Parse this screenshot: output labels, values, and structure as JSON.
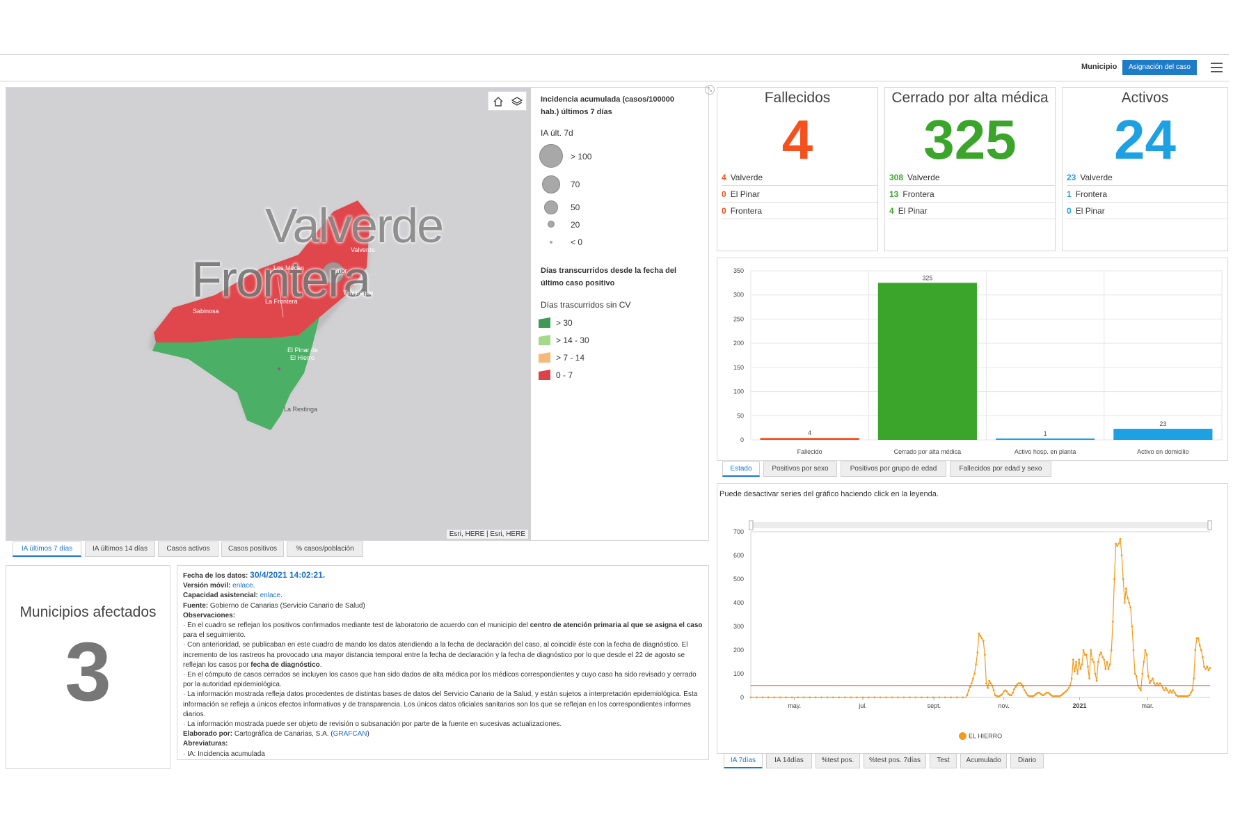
{
  "header": {
    "filter_label": "Municipio",
    "filter_button": "Asignación del caso",
    "menu_icon": "hamburger-menu-icon"
  },
  "map": {
    "labels": {
      "valverde_big": "Valverde",
      "frontera_big": "Frontera",
      "valverde_small": "Valverde",
      "mocan": "Los Mocan",
      "isora": "ínor",
      "tiñor": "Tiñor",
      "timijiraque": "Timijiraque",
      "frontera_small": "La Frontera",
      "sabinosa": "Sabinosa",
      "el_pinar": "El Pinar de",
      "el_hierro": "El Hierro",
      "restinga": "La Restinga"
    },
    "attribution": "Esri, HERE | Esri, HERE",
    "colors": {
      "red": "#e0474c",
      "green": "#4caf66",
      "water": "#d1d1d3"
    }
  },
  "legend": {
    "title": "Incidencia acumulada (casos/100000 hab.) últimos 7 días",
    "size_title": "IA últ. 7d",
    "sizes": [
      "> 100",
      "70",
      "50",
      "20",
      "< 0"
    ],
    "days_title": "Días transcurridos desde la fecha del último caso positivo",
    "days_subtitle": "Días trascurridos sin CV",
    "classes": [
      {
        "label": "> 30",
        "color": "#3d9a53"
      },
      {
        "label": "> 14 - 30",
        "color": "#a5d98a"
      },
      {
        "label": "> 7 - 14",
        "color": "#f5b97b"
      },
      {
        "label": "0 - 7",
        "color": "#d9434a"
      }
    ]
  },
  "map_tabs": [
    "IA últimos 7 días",
    "IA últimos 14 días",
    "Casos activos",
    "Casos positivos",
    "% casos/población"
  ],
  "municipios": {
    "title": "Municipios afectados",
    "value": "3"
  },
  "notes": {
    "fecha_label": "Fecha de los datos:",
    "fecha_value": "30/4/2021 14:02:21.",
    "movil_label": "Versión móvil:",
    "movil_link": "enlace",
    "capacidad_label": "Capacidad asistencial:",
    "capacidad_link": "enlace",
    "fuente_label": "Fuente:",
    "fuente_value": "Gobierno de Canarias (Servicio Canario de Salud)",
    "obs_label": "Observaciones:",
    "obs1a": "· En el cuadro se reflejan los positivos confirmados mediante test de laboratorio de acuerdo con el municipio del",
    "obs1b": "centro de atención primaria al que se asigna el caso",
    "obs1c": "para el seguimiento.",
    "obs2a": "· Con anterioridad, se publicaban en este cuadro de mando los datos atendiendo a la fecha de declaración del caso, al coincidir éste con la fecha de diagnóstico. El incremento de los rastreos ha provocado una mayor distancia temporal entre la fecha de declaración y la fecha de diagnóstico por lo que desde el 22 de agosto se reflejan los casos por",
    "obs2b": "fecha de diagnóstico",
    "obs3": "· En el cómputo de casos cerrados se incluyen los casos que han sido dados de alta médica por los médicos correspondientes y cuyo caso ha sido revisado y cerrado por la autoridad epidemiológica.",
    "obs4": "· La información mostrada refleja datos procedentes de distintas bases de datos del Servicio Canario de la Salud, y están sujetos a interpretación epidemiológica. Esta información se refleja a únicos efectos informativos y de transparencia. Los únicos datos oficiales sanitarios son los que se reflejan en los correspondientes informes diarios.",
    "obs5": "· La información mostrada puede ser objeto de revisión o subsanación por parte de la fuente en sucesivas actualizaciones.",
    "elaborado_label": "Elaborado por:",
    "elaborado_value": "Cartográfica de Canarias, S.A. (",
    "elaborado_link": "GRAFCAN",
    "elaborado_end": ")",
    "abrev_label": "Abreviaturas:",
    "abrev_value": "· IA: Incidencia acumulada"
  },
  "kpis": [
    {
      "title": "Fallecidos",
      "value": "4",
      "color": "#f4511e",
      "rows": [
        {
          "num": "4",
          "name": "Valverde"
        },
        {
          "num": "0",
          "name": "El Pinar"
        },
        {
          "num": "0",
          "name": "Frontera"
        }
      ]
    },
    {
      "title": "Cerrado por alta médica",
      "value": "325",
      "color": "#3aa52a",
      "rows": [
        {
          "num": "308",
          "name": "Valverde"
        },
        {
          "num": "13",
          "name": "Frontera"
        },
        {
          "num": "4",
          "name": "El Pinar"
        }
      ]
    },
    {
      "title": "Activos",
      "value": "24",
      "color": "#1ea1e3",
      "rows": [
        {
          "num": "23",
          "name": "Valverde"
        },
        {
          "num": "1",
          "name": "Frontera"
        },
        {
          "num": "0",
          "name": "El Pinar"
        }
      ]
    }
  ],
  "bar_tabs": [
    "Estado",
    "Positivos por sexo",
    "Positivos por grupo de edad",
    "Fallecidos por edad y sexo"
  ],
  "line_note": "Puede desactivar series del gráfico haciendo click en la leyenda.",
  "line_tabs": [
    "IA 7días",
    "IA 14días",
    "%test pos.",
    "%test pos. 7días",
    "Test",
    "Acumulado",
    "Diario"
  ],
  "chart_data": [
    {
      "type": "bar",
      "categories": [
        "Fallecido",
        "Cerrado por alta médica",
        "Activo hosp. en planta",
        "Activo en domicilio"
      ],
      "values": [
        4,
        325,
        1,
        23
      ],
      "colors": [
        "#f4511e",
        "#3aa52a",
        "#1ea1e3",
        "#1ea1e3"
      ],
      "ylim": [
        0,
        350
      ],
      "yticks": [
        0,
        50,
        100,
        150,
        200,
        250,
        300,
        350
      ],
      "grid": true
    },
    {
      "type": "line",
      "series": [
        {
          "name": "EL HIERRO",
          "color": "#f29b1d",
          "values": [
            0,
            0,
            0,
            0,
            0,
            0,
            0,
            0,
            0,
            0,
            0,
            0,
            0,
            0,
            0,
            0,
            0,
            0,
            0,
            0,
            0,
            0,
            0,
            0,
            0,
            0,
            0,
            0,
            0,
            0,
            0,
            0,
            0,
            0,
            0,
            0,
            0,
            0,
            0,
            0,
            0,
            0,
            0,
            0,
            0,
            0,
            0,
            0,
            0,
            0,
            0,
            0,
            0,
            0,
            0,
            0,
            0,
            0,
            0,
            0,
            0,
            0,
            0,
            0,
            0,
            0,
            0,
            0,
            0,
            0,
            0,
            0,
            0,
            0,
            0,
            0,
            0,
            0,
            0,
            0,
            0,
            0,
            0,
            0,
            0,
            0,
            0,
            0,
            0,
            0,
            0,
            0,
            0,
            0,
            0,
            0,
            0,
            0,
            0,
            0,
            0,
            0,
            0,
            0,
            0,
            0,
            0,
            0,
            0,
            0,
            0,
            0,
            0,
            0,
            0,
            0,
            0,
            0,
            0,
            0,
            0,
            0,
            0,
            0,
            0,
            0,
            0,
            0,
            0,
            0,
            0,
            0,
            0,
            0,
            0,
            0,
            0,
            0,
            0,
            0,
            0,
            0,
            0,
            0,
            0,
            0,
            0,
            10,
            30,
            45,
            60,
            80,
            100,
            140,
            190,
            270,
            260,
            250,
            240,
            180,
            60,
            40,
            70,
            60,
            50,
            30,
            10,
            5,
            5,
            5,
            10,
            15,
            25,
            30,
            25,
            15,
            10,
            10,
            20,
            35,
            45,
            55,
            60,
            60,
            55,
            45,
            30,
            20,
            10,
            5,
            5,
            5,
            5,
            10,
            15,
            20,
            20,
            15,
            10,
            10,
            15,
            20,
            20,
            15,
            10,
            5,
            5,
            5,
            5,
            5,
            5,
            10,
            15,
            20,
            25,
            30,
            40,
            50,
            80,
            160,
            110,
            150,
            100,
            160,
            120,
            140,
            200,
            180,
            180,
            130,
            80,
            200,
            160,
            150,
            100,
            70,
            150,
            180,
            190,
            170,
            160,
            120,
            150,
            120,
            140,
            200,
            320,
            500,
            650,
            640,
            650,
            670,
            600,
            500,
            400,
            460,
            420,
            400,
            380,
            300,
            200,
            100,
            90,
            50,
            40,
            30,
            100,
            150,
            200,
            180,
            90,
            60,
            70,
            80,
            60,
            50,
            60,
            50,
            60,
            50,
            40,
            30,
            40,
            30,
            20,
            30,
            20,
            30,
            20,
            10,
            5,
            5,
            5,
            5,
            5,
            5,
            5,
            5,
            10,
            20,
            30,
            80,
            200,
            250,
            250,
            220,
            200,
            170,
            130,
            120,
            130,
            115,
            125
          ]
        }
      ],
      "threshold": {
        "value": 50,
        "color": "#e85a60"
      },
      "ylim": [
        0,
        700
      ],
      "yticks": [
        0,
        100,
        200,
        300,
        400,
        500,
        600,
        700
      ],
      "xticks": [
        {
          "label": "may.",
          "frac": 0.095
        },
        {
          "label": "jul.",
          "frac": 0.244
        },
        {
          "label": "sept.",
          "frac": 0.399
        },
        {
          "label": "nov.",
          "frac": 0.551
        },
        {
          "label": "2021",
          "frac": 0.716
        },
        {
          "label": "mar.",
          "frac": 0.864
        }
      ]
    }
  ]
}
